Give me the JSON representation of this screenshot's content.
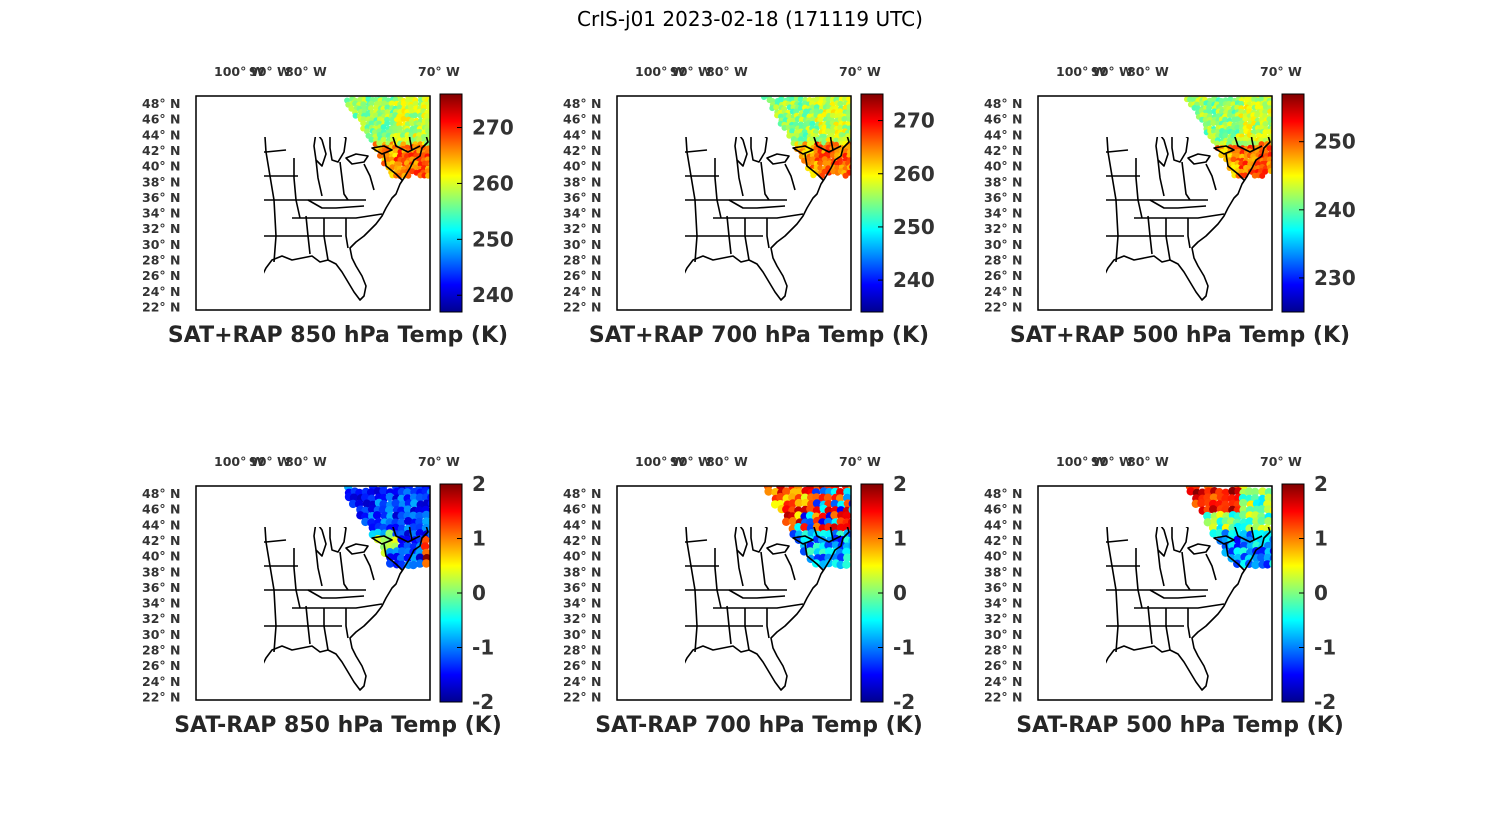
{
  "figure": {
    "title": "CrIS-j01 2023-02-18 (171119 UTC)"
  },
  "colormap": [
    "#00008f",
    "#0000ff",
    "#0080ff",
    "#00ffff",
    "#80ff80",
    "#ffff00",
    "#ff8000",
    "#ff0000",
    "#800000"
  ],
  "axes": {
    "lon_ticks": [
      "100° W",
      "90° W",
      "80° W",
      "70° W"
    ],
    "lat_ticks": [
      "48° N",
      "46° N",
      "44° N",
      "42° N",
      "40° N",
      "38° N",
      "36° N",
      "34° N",
      "32° N",
      "30° N",
      "28° N",
      "26° N",
      "24° N",
      "22° N"
    ]
  },
  "chart_data": [
    {
      "type": "map-scatter",
      "title": "SAT+RAP 850 hPa Temp (K)",
      "colorbar": {
        "min": 237,
        "max": 276,
        "ticks": [
          270,
          260,
          250,
          240
        ]
      },
      "dominant_values": [
        "north ~258",
        "south ~266"
      ]
    },
    {
      "type": "map-scatter",
      "title": "SAT+RAP 700 hPa Temp (K)",
      "colorbar": {
        "min": 234,
        "max": 275,
        "ticks": [
          270,
          260,
          250,
          240
        ]
      },
      "dominant_values": [
        "north ~256",
        "south ~265"
      ]
    },
    {
      "type": "map-scatter",
      "title": "SAT+RAP 500 hPa Temp (K)",
      "colorbar": {
        "min": 225,
        "max": 257,
        "ticks": [
          250,
          240,
          230
        ]
      },
      "dominant_values": [
        "north ~242",
        "south ~248"
      ]
    },
    {
      "type": "map-scatter",
      "title": "SAT-RAP 850 hPa Temp (K)",
      "colorbar": {
        "min": -2,
        "max": 2,
        "ticks": [
          2,
          1,
          0,
          -1,
          -2
        ]
      },
      "dominant_values": [
        "mostly -2 to -1"
      ]
    },
    {
      "type": "map-scatter",
      "title": "SAT-RAP 700 hPa Temp (K)",
      "colorbar": {
        "min": -2,
        "max": 2,
        "ticks": [
          2,
          1,
          0,
          -1,
          -2
        ]
      },
      "dominant_values": [
        "north-west ~1.5",
        "east ~-1.5"
      ]
    },
    {
      "type": "map-scatter",
      "title": "SAT-RAP 500 hPa Temp (K)",
      "colorbar": {
        "min": -2,
        "max": 2,
        "ticks": [
          2,
          1,
          0,
          -1,
          -2
        ]
      },
      "dominant_values": [
        "north-west ~1.5",
        "south ~-1.5"
      ]
    }
  ]
}
